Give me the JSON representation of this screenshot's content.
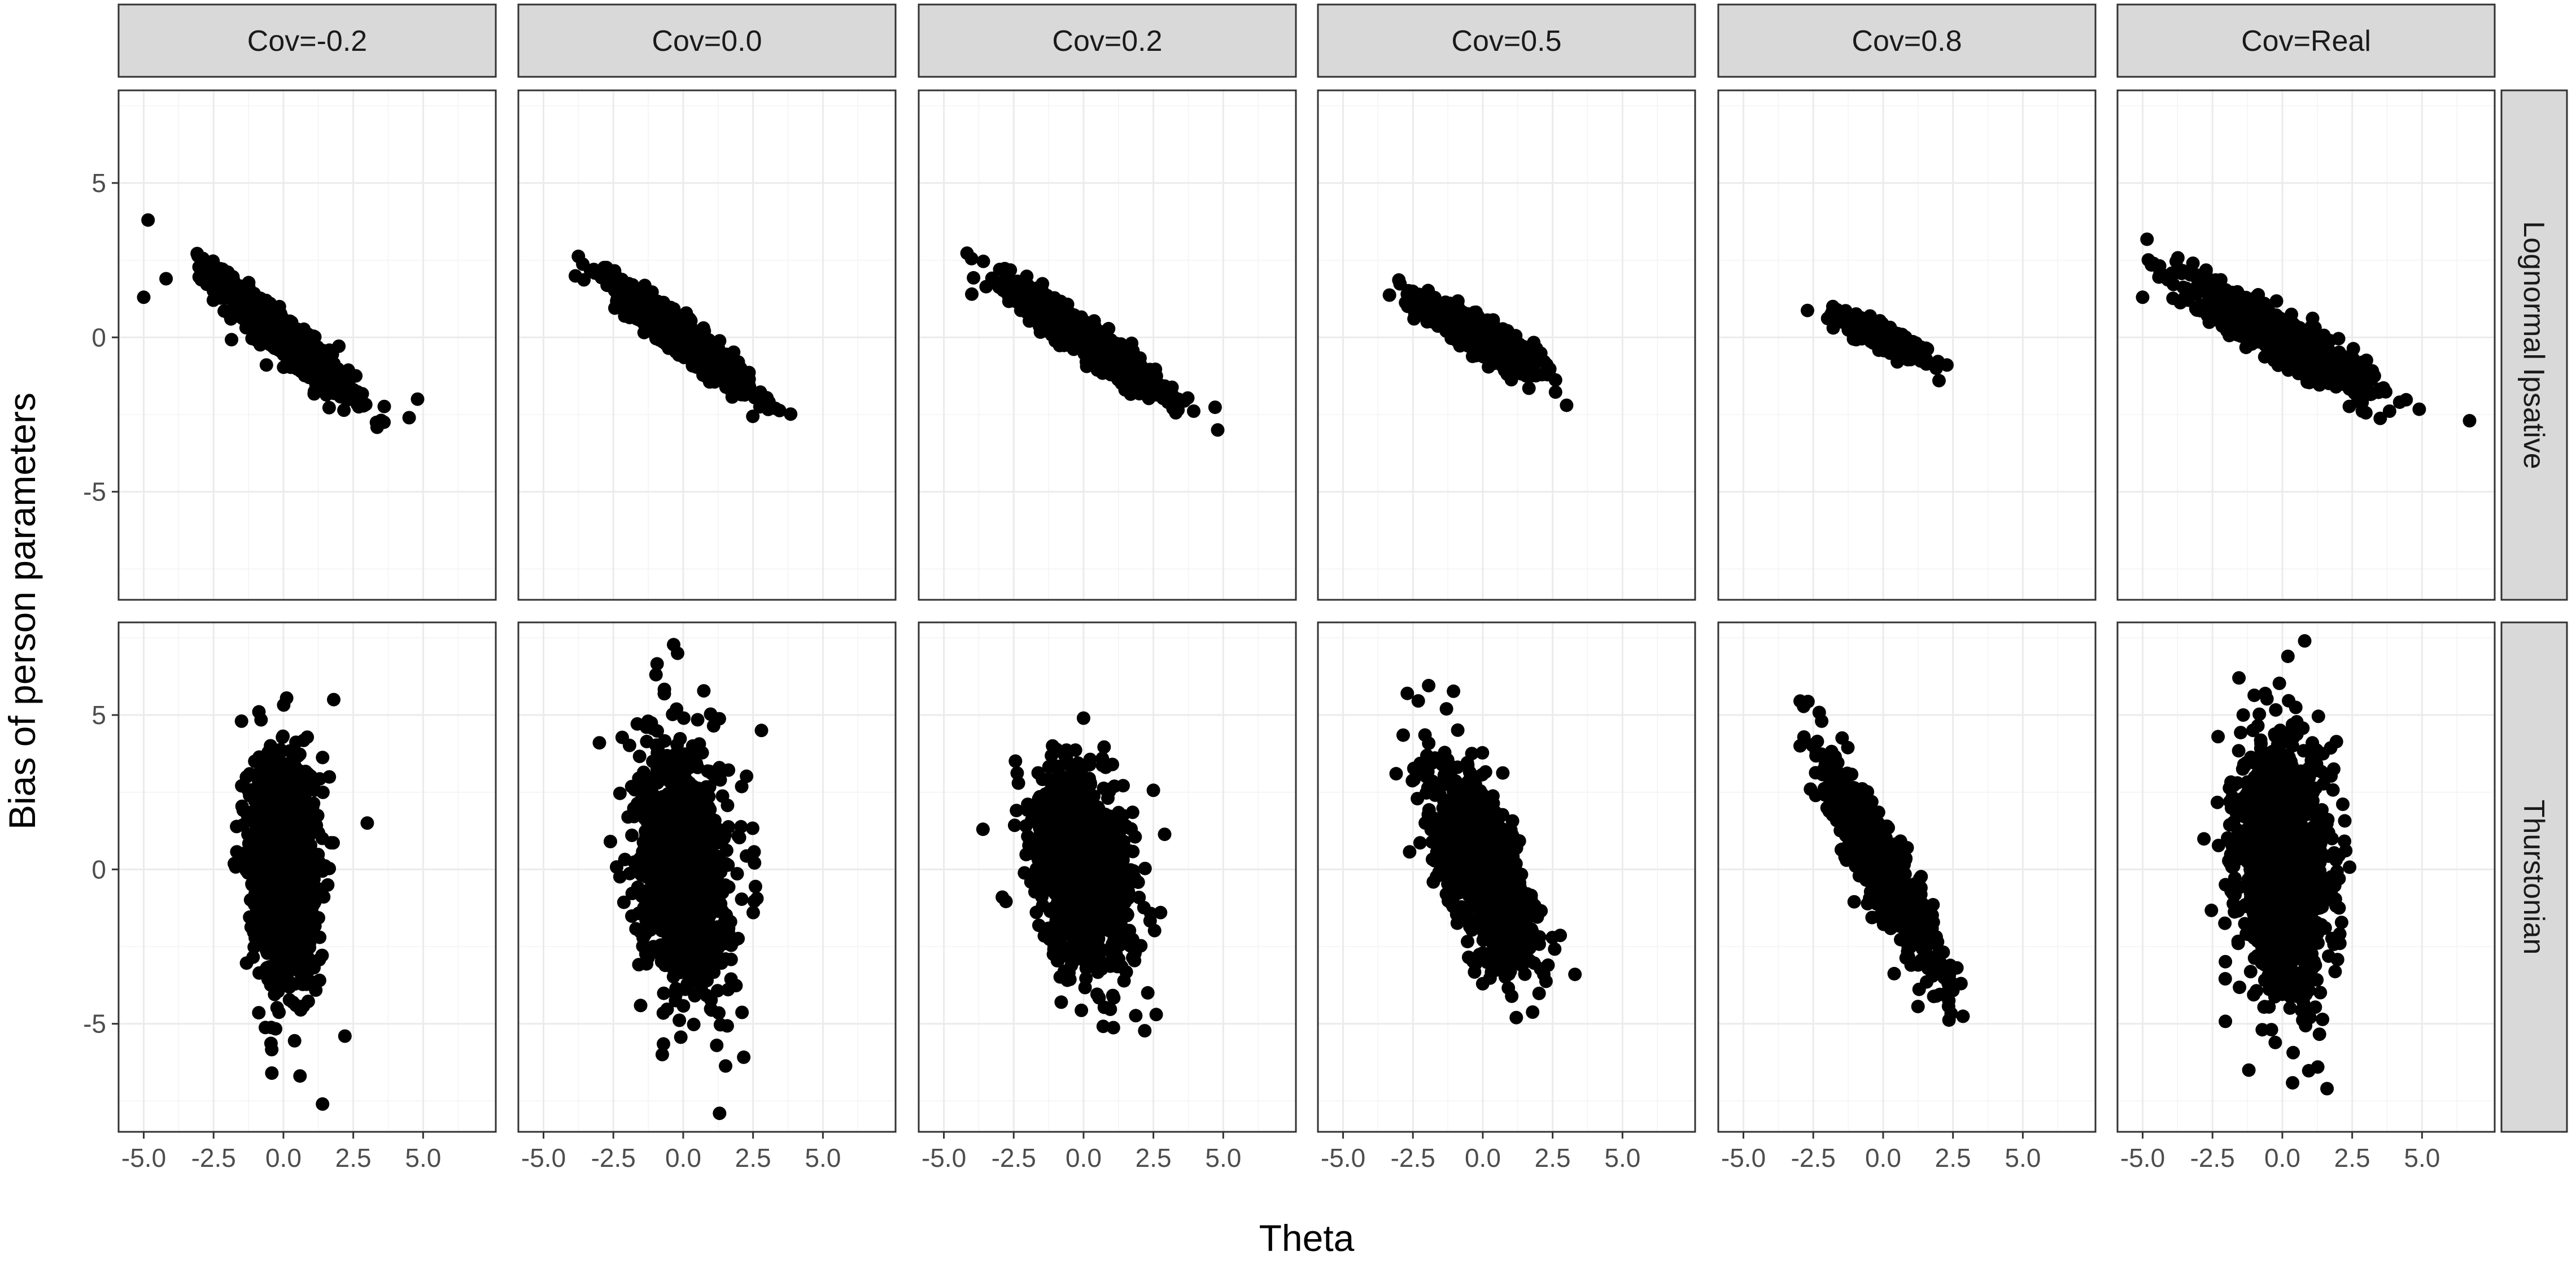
{
  "chart_data": {
    "type": "scatter",
    "layout": "facet_grid",
    "xlabel": "Theta",
    "ylabel": "Bias of person parameters",
    "xlim": [
      -5.9,
      7.6
    ],
    "ylim": [
      -8.5,
      8.0
    ],
    "x_ticks": [
      -5.0,
      -2.5,
      0.0,
      2.5,
      5.0
    ],
    "x_tick_labels": [
      "-5.0",
      "-2.5",
      "0.0",
      "2.5",
      "5.0"
    ],
    "y_ticks": [
      -5,
      0,
      5
    ],
    "y_tick_labels": [
      "-5",
      "0",
      "5"
    ],
    "columns": [
      "Cov=-0.2",
      "Cov=0.0",
      "Cov=0.2",
      "Cov=0.5",
      "Cov=0.8",
      "Cov=Real"
    ],
    "rows": [
      "Lognormal Ipsative",
      "Thurstonian"
    ],
    "grid": true,
    "point_color": "#000000",
    "panels": [
      {
        "row": 0,
        "col": 0,
        "n": 900,
        "x_mean": 0.0,
        "x_sd": 1.2,
        "slope": -0.75,
        "y_sd": 0.35,
        "outliers": [
          [
            -5.0,
            1.3
          ],
          [
            4.8,
            -2.0
          ],
          [
            4.5,
            -2.6
          ],
          [
            -4.2,
            1.9
          ]
        ]
      },
      {
        "row": 0,
        "col": 1,
        "n": 900,
        "x_mean": 0.0,
        "x_sd": 1.2,
        "slope": -0.68,
        "y_sd": 0.3,
        "outliers": [
          [
            -3.2,
            2.2
          ],
          [
            3.3,
            -2.3
          ]
        ]
      },
      {
        "row": 0,
        "col": 2,
        "n": 900,
        "x_mean": 0.0,
        "x_sd": 1.3,
        "slope": -0.62,
        "y_sd": 0.3,
        "outliers": [
          [
            -4.0,
            1.4
          ],
          [
            4.8,
            -3.0
          ],
          [
            3.2,
            -2.3
          ],
          [
            -3.0,
            2.2
          ]
        ]
      },
      {
        "row": 0,
        "col": 3,
        "n": 700,
        "x_mean": 0.0,
        "x_sd": 1.0,
        "slope": -0.48,
        "y_sd": 0.25,
        "outliers": [
          [
            -2.7,
            1.4
          ],
          [
            3.0,
            -2.2
          ]
        ]
      },
      {
        "row": 0,
        "col": 4,
        "n": 500,
        "x_mean": 0.0,
        "x_sd": 0.75,
        "slope": -0.42,
        "y_sd": 0.18,
        "outliers": [
          [
            -1.8,
            1.0
          ],
          [
            2.0,
            -1.4
          ]
        ]
      },
      {
        "row": 0,
        "col": 5,
        "n": 1100,
        "x_mean": 0.0,
        "x_sd": 1.5,
        "slope": -0.5,
        "y_sd": 0.35,
        "outliers": [
          [
            -5.0,
            1.3
          ],
          [
            6.7,
            -2.7
          ],
          [
            4.2,
            -2.1
          ],
          [
            -3.2,
            2.4
          ]
        ]
      },
      {
        "row": 1,
        "col": 0,
        "n": 1100,
        "x_mean": 0.0,
        "x_sd": 0.6,
        "slope": -0.3,
        "y_sd": 1.9,
        "outliers": [
          [
            1.4,
            -7.6
          ],
          [
            1.8,
            5.5
          ],
          [
            3.0,
            1.5
          ],
          [
            -1.5,
            4.8
          ],
          [
            2.2,
            -5.4
          ]
        ]
      },
      {
        "row": 1,
        "col": 1,
        "n": 1100,
        "x_mean": 0.0,
        "x_sd": 0.8,
        "slope": -0.3,
        "y_sd": 1.9,
        "outliers": [
          [
            1.3,
            -7.9
          ],
          [
            -0.2,
            7.0
          ],
          [
            -3.0,
            4.1
          ],
          [
            2.8,
            4.5
          ],
          [
            1.2,
            -5.7
          ]
        ]
      },
      {
        "row": 1,
        "col": 2,
        "n": 1000,
        "x_mean": 0.0,
        "x_sd": 0.9,
        "slope": -0.55,
        "y_sd": 1.6,
        "outliers": [
          [
            -3.6,
            1.3
          ],
          [
            2.6,
            -4.7
          ],
          [
            0.0,
            4.9
          ],
          [
            -0.8,
            -4.3
          ]
        ]
      },
      {
        "row": 1,
        "col": 3,
        "n": 1000,
        "x_mean": 0.0,
        "x_sd": 0.9,
        "slope": -1.1,
        "y_sd": 1.2,
        "outliers": [
          [
            -2.7,
            5.7
          ],
          [
            -3.1,
            3.1
          ],
          [
            3.3,
            -3.4
          ],
          [
            1.2,
            -4.8
          ],
          [
            -1.3,
            5.2
          ]
        ]
      },
      {
        "row": 1,
        "col": 4,
        "n": 900,
        "x_mean": 0.0,
        "x_sd": 0.95,
        "slope": -1.5,
        "y_sd": 0.7,
        "outliers": [
          [
            -2.2,
            4.8
          ],
          [
            -2.6,
            2.6
          ],
          [
            2.5,
            -3.8
          ],
          [
            1.9,
            -4.1
          ]
        ]
      },
      {
        "row": 1,
        "col": 5,
        "n": 1300,
        "x_mean": 0.0,
        "x_sd": 0.8,
        "slope": -0.3,
        "y_sd": 2.0,
        "outliers": [
          [
            0.8,
            7.4
          ],
          [
            -1.2,
            -6.5
          ],
          [
            1.6,
            -7.1
          ],
          [
            -1.4,
            5.0
          ],
          [
            0.2,
            6.9
          ],
          [
            -2.3,
            4.3
          ]
        ]
      }
    ]
  }
}
